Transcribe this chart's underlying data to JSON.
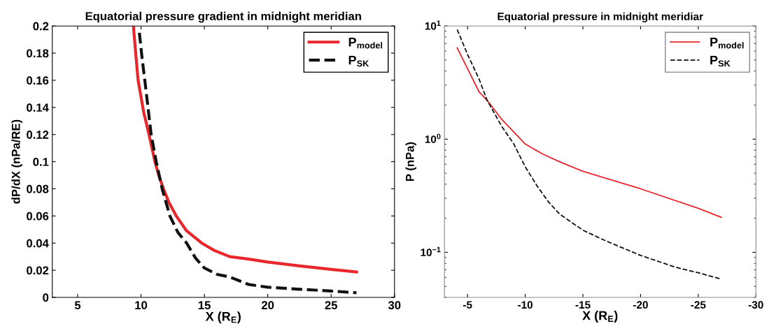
{
  "chart_data": [
    {
      "type": "line",
      "title": "Equatorial pressure gradient in midnight meridian",
      "xlabel": "X (R$_{E}$)",
      "ylabel": "dP/dX (nPa/RE)",
      "xlim": [
        3,
        30
      ],
      "xticks": [
        5,
        10,
        15,
        20,
        25,
        30
      ],
      "ylim": [
        0,
        0.2
      ],
      "yticks": [
        0,
        0.02,
        0.04,
        0.06,
        0.08,
        0.1,
        0.12,
        0.14,
        0.16,
        0.18,
        0.2
      ],
      "grid": false,
      "legend": "top right",
      "series": [
        {
          "name": "P$_{model}$",
          "color": "#e8262b",
          "line_style": "solid",
          "x": [
            9.4,
            9.6,
            9.77,
            10.2,
            10.63,
            11.1,
            11.4,
            11.77,
            12.2,
            12.78,
            13.6,
            14.79,
            15.8,
            17.0,
            18.5,
            20,
            22.5,
            25,
            27
          ],
          "values": [
            0.2,
            0.178,
            0.16,
            0.137,
            0.12,
            0.1,
            0.09,
            0.08,
            0.07,
            0.06,
            0.049,
            0.04,
            0.0345,
            0.03,
            0.0282,
            0.026,
            0.0232,
            0.0206,
            0.0187
          ]
        },
        {
          "name": "P$_{SK}$",
          "color": "#111111",
          "line_style": "dashed",
          "x": [
            9.87,
            10.1,
            10.3,
            10.55,
            10.8,
            11.2,
            11.67,
            12.28,
            12.9,
            13.6,
            14.3,
            15.0,
            16.0,
            17,
            18.5,
            20,
            22.5,
            25,
            27
          ],
          "values": [
            0.195,
            0.175,
            0.16,
            0.14,
            0.12,
            0.1,
            0.08,
            0.06,
            0.048,
            0.04,
            0.029,
            0.0216,
            0.017,
            0.015,
            0.0095,
            0.0075,
            0.006,
            0.0047,
            0.0034
          ]
        }
      ]
    },
    {
      "type": "line",
      "title": "Equatorial pressure in midnight meridiar",
      "xlabel": "X (R$_{E}$)",
      "ylabel": "P (nPa)",
      "log": "y",
      "xlim": [
        -3,
        -30
      ],
      "xticks": [
        -5,
        -10,
        -15,
        -20,
        -25,
        -30
      ],
      "ylim": [
        0.04,
        10
      ],
      "yticks": [
        {
          "value": 0.1,
          "label": "10$^{−1}$"
        },
        {
          "value": 1,
          "label": "10$^{0}$"
        },
        {
          "value": 10,
          "label": "10$^{1}$"
        }
      ],
      "grid": false,
      "legend": "top right",
      "series": [
        {
          "name": "P$_{model}$",
          "color": "#e8262b",
          "line_style": "solid",
          "x": [
            -4.1,
            -5,
            -6,
            -6.7,
            -8,
            -9,
            -10,
            -11.5,
            -13,
            -15,
            -20,
            -25,
            -27
          ],
          "values": [
            6.4,
            4.2,
            2.62,
            2.2,
            1.48,
            1.16,
            0.906,
            0.74,
            0.63,
            0.52,
            0.364,
            0.245,
            0.204
          ]
        },
        {
          "name": "P$_{SK}$",
          "color": "#111111",
          "line_style": "dashed",
          "x": [
            -4.1,
            -5,
            -6,
            -6.7,
            -8,
            -9,
            -10,
            -11,
            -12,
            -13,
            -15,
            -17,
            -20,
            -23,
            -25,
            -27
          ],
          "values": [
            9.3,
            5.6,
            3.4,
            2.2,
            1.28,
            0.91,
            0.57,
            0.39,
            0.28,
            0.217,
            0.157,
            0.126,
            0.094,
            0.074,
            0.066,
            0.058
          ]
        }
      ]
    }
  ]
}
